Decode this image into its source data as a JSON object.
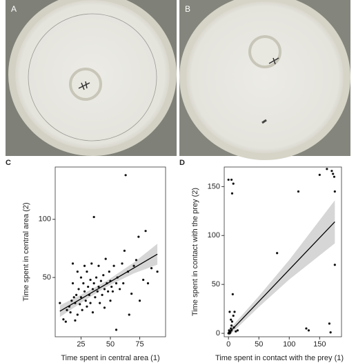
{
  "photos": [
    {
      "label": "A"
    },
    {
      "label": "B"
    }
  ],
  "chart_data": [
    {
      "type": "scatter",
      "label": "C",
      "x_label": "Time spent in central area (1)",
      "y_label": "Time spent in central area (2)",
      "xlim": [
        3,
        97
      ],
      "ylim": [
        -1,
        145
      ],
      "xticks": [
        25,
        50,
        75
      ],
      "yticks": [
        50,
        100
      ],
      "color": "#111111",
      "x": [
        7,
        10,
        12,
        13,
        15,
        16,
        17,
        18,
        18,
        19,
        20,
        20,
        21,
        22,
        22,
        23,
        24,
        25,
        25,
        26,
        27,
        28,
        28,
        29,
        30,
        30,
        31,
        32,
        33,
        33,
        34,
        35,
        35,
        36,
        36,
        37,
        38,
        39,
        40,
        40,
        41,
        42,
        43,
        44,
        45,
        45,
        46,
        47,
        48,
        49,
        50,
        50,
        51,
        52,
        53,
        55,
        55,
        56,
        58,
        60,
        61,
        62,
        63,
        65,
        66,
        68,
        70,
        72,
        74,
        75,
        78,
        80,
        82,
        85,
        90
      ],
      "y": [
        28,
        14,
        12,
        22,
        25,
        20,
        30,
        62,
        45,
        33,
        13,
        28,
        35,
        55,
        18,
        40,
        27,
        33,
        50,
        22,
        45,
        38,
        60,
        30,
        25,
        55,
        42,
        35,
        48,
        28,
        62,
        40,
        20,
        102,
        45,
        33,
        50,
        38,
        42,
        60,
        28,
        47,
        35,
        52,
        40,
        24,
        66,
        45,
        38,
        55,
        47,
        30,
        42,
        38,
        60,
        45,
        5,
        50,
        40,
        62,
        45,
        73,
        138,
        55,
        18,
        36,
        60,
        65,
        85,
        30,
        48,
        90,
        45,
        58,
        55
      ],
      "fit": {
        "x": [
          7,
          30,
          48,
          70,
          90
        ],
        "y": [
          21,
          34.6,
          45.2,
          58.2,
          70
        ],
        "lower": [
          16,
          31.5,
          42.6,
          53.5,
          61
        ],
        "upper": [
          26,
          37.7,
          47.8,
          62.9,
          79
        ]
      }
    },
    {
      "type": "scatter",
      "label": "D",
      "x_label": "Time spent in contact with the prey (1)",
      "y_label": "Time spent in contact with the prey (2)",
      "xlim": [
        -7,
        186
      ],
      "ylim": [
        -3.5,
        170
      ],
      "xticks": [
        0,
        50,
        100,
        150
      ],
      "yticks": [
        0,
        50,
        100,
        150
      ],
      "color": "#111111",
      "x": [
        0,
        5,
        8,
        6,
        2,
        3,
        4,
        5,
        1,
        6,
        8,
        2,
        10,
        7,
        3,
        0,
        1,
        5,
        9,
        4,
        12,
        15,
        80,
        115,
        128,
        132,
        150,
        162,
        166,
        168,
        170,
        172,
        174,
        175,
        175
      ],
      "y": [
        157,
        157,
        153,
        143,
        0,
        2,
        5,
        8,
        3,
        12,
        18,
        22,
        22,
        40,
        1,
        0,
        1,
        3,
        6,
        14,
        2,
        3,
        82,
        145,
        5,
        3,
        162,
        168,
        10,
        1,
        166,
        163,
        160,
        70,
        145
      ],
      "fit": {
        "x": [
          0,
          50,
          100,
          175
        ],
        "y": [
          0,
          32.6,
          65.1,
          114
        ],
        "lower": [
          -3,
          27,
          55,
          92
        ],
        "upper": [
          3,
          38,
          75,
          136
        ]
      }
    }
  ]
}
